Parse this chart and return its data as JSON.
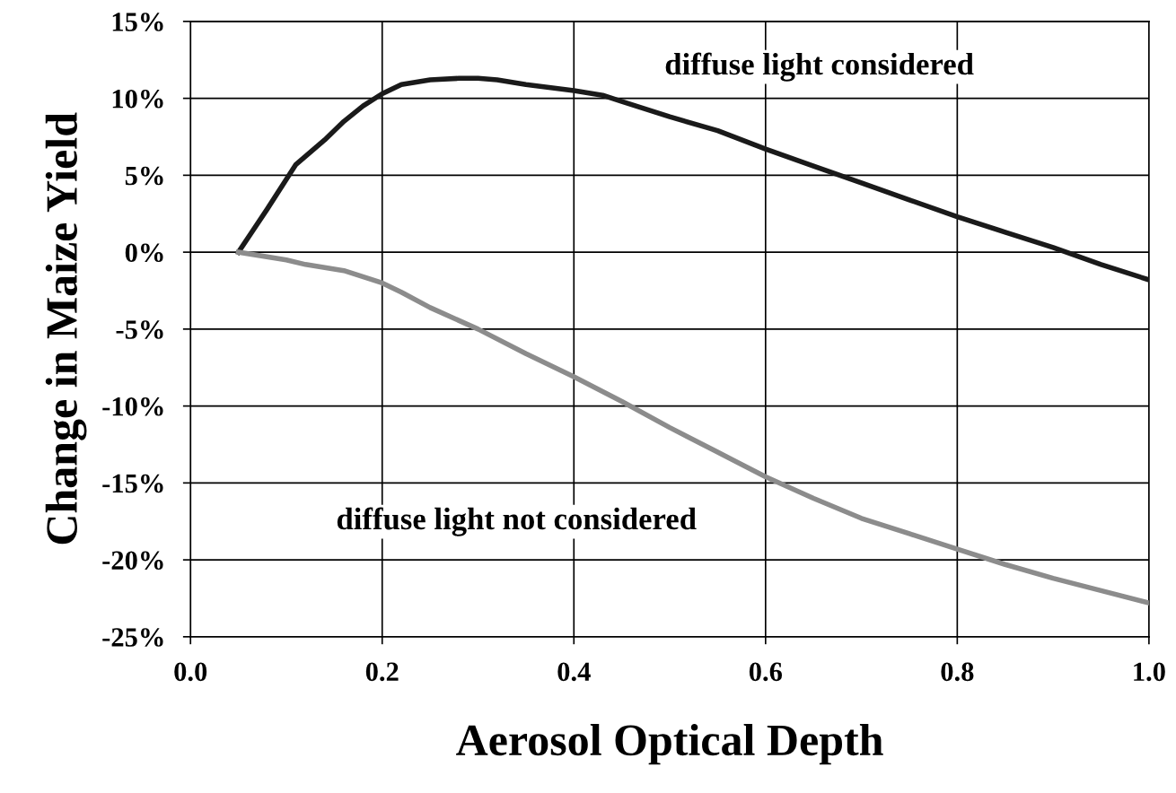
{
  "chart_data": {
    "type": "line",
    "xlabel": "Aerosol Optical Depth",
    "ylabel": "Change in Maize Yield",
    "series": [
      {
        "name": "diffuse light considered",
        "color": "#1a1a1a",
        "x": [
          0.05,
          0.08,
          0.11,
          0.14,
          0.16,
          0.18,
          0.2,
          0.22,
          0.25,
          0.28,
          0.3,
          0.32,
          0.35,
          0.4,
          0.43,
          0.45,
          0.5,
          0.55,
          0.6,
          0.65,
          0.7,
          0.75,
          0.8,
          0.85,
          0.9,
          0.95,
          1.0
        ],
        "values": [
          0,
          2.8,
          5.7,
          7.3,
          8.5,
          9.5,
          10.3,
          10.9,
          11.2,
          11.3,
          11.3,
          11.2,
          10.9,
          10.5,
          10.2,
          9.8,
          8.8,
          7.9,
          6.7,
          5.6,
          4.5,
          3.4,
          2.3,
          1.3,
          0.3,
          -0.8,
          -1.8
        ]
      },
      {
        "name": "diffuse light not considered",
        "color": "#8c8c8c",
        "x": [
          0.05,
          0.1,
          0.12,
          0.16,
          0.2,
          0.22,
          0.25,
          0.3,
          0.35,
          0.4,
          0.45,
          0.5,
          0.55,
          0.6,
          0.65,
          0.7,
          0.75,
          0.8,
          0.85,
          0.9,
          0.95,
          1.0
        ],
        "values": [
          0,
          -0.5,
          -0.8,
          -1.2,
          -2.0,
          -2.6,
          -3.6,
          -5.0,
          -6.6,
          -8.1,
          -9.7,
          -11.4,
          -13.0,
          -14.6,
          -16.0,
          -17.3,
          -18.3,
          -19.3,
          -20.3,
          -21.2,
          -22.0,
          -22.8
        ]
      }
    ],
    "xlim": [
      0.0,
      1.0
    ],
    "xticks": [
      {
        "value": 0.0,
        "label": "0.0"
      },
      0.2,
      0.4,
      0.6,
      0.8,
      {
        "value": 1.0,
        "label": "1.0"
      }
    ],
    "ylim": [
      -25,
      15
    ],
    "yticks": [
      {
        "value": -25,
        "label": "-25%"
      },
      {
        "value": -20,
        "label": "-20%"
      },
      {
        "value": -15,
        "label": "-15%"
      },
      {
        "value": -10,
        "label": "-10%"
      },
      {
        "value": -5,
        "label": "-5%"
      },
      {
        "value": 0,
        "label": "0%"
      },
      {
        "value": 5,
        "label": "5%"
      },
      {
        "value": 10,
        "label": "10%"
      },
      {
        "value": 15,
        "label": "15%"
      }
    ],
    "grid": true,
    "legend": false,
    "marker": "none",
    "line_style": "solid"
  }
}
